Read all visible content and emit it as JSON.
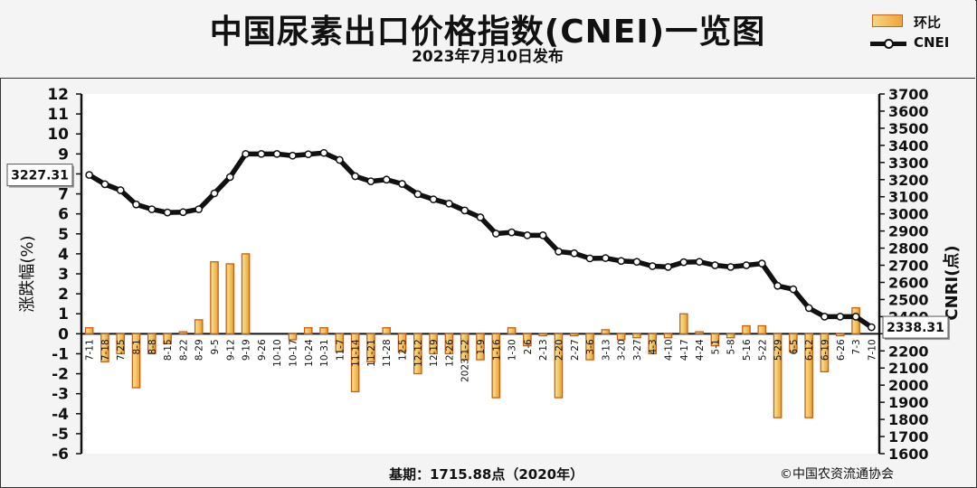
{
  "chart_data": {
    "type": "bar+line",
    "title": "中国尿素出口价格指数(CNEI)一览图",
    "subtitle": "2023年7月10日发布",
    "legend": [
      {
        "label": "环比",
        "type": "bar",
        "color": "#f0a23e"
      },
      {
        "label": "CNEI",
        "type": "line",
        "color": "#111111"
      }
    ],
    "legend_position": "top-right",
    "ylabel_left": "涨跌幅(%)",
    "ylabel_right": "CNRI(点)",
    "ylim_left": [
      -6,
      12
    ],
    "ylim_right": [
      1600,
      3700
    ],
    "yticks_left": [
      "12",
      "11",
      "10",
      "9",
      "8",
      "7",
      "6",
      "5",
      "4",
      "3",
      "2",
      "1",
      "0",
      "-1",
      "-2",
      "-3",
      "-4",
      "-5",
      "-6"
    ],
    "yticks_right": [
      "3700",
      "3600",
      "3500",
      "3400",
      "3300",
      "3200",
      "3100",
      "3000",
      "2900",
      "2800",
      "2700",
      "2600",
      "2500",
      "2400",
      "2300",
      "2200",
      "2100",
      "2000",
      "1900",
      "1800",
      "1700",
      "1600"
    ],
    "categories": [
      "7-11",
      "7-18",
      "7-25",
      "8-1",
      "8-8",
      "8-15",
      "8-22",
      "8-29",
      "9-5",
      "9-12",
      "9-19",
      "9-26",
      "10-10",
      "10-17",
      "10-24",
      "10-31",
      "11-7",
      "11-14",
      "11-21",
      "11-28",
      "12-5",
      "12-12",
      "12-19",
      "12-26",
      "2023-1-2",
      "1-9",
      "1-16",
      "1-30",
      "2-6",
      "2-13",
      "2-20",
      "2-27",
      "3-6",
      "3-13",
      "3-20",
      "3-27",
      "4-3",
      "4-10",
      "4-17",
      "4-24",
      "5-1",
      "5-8",
      "5-16",
      "5-22",
      "5-29",
      "6-5",
      "6-12",
      "6-19",
      "6-26",
      "7-3",
      "7-10"
    ],
    "series": [
      {
        "name": "环比",
        "axis": "left",
        "values": [
          0.3,
          -1.4,
          -1.0,
          -2.7,
          -1.0,
          -0.5,
          0.1,
          0.7,
          3.6,
          3.5,
          4.0,
          0.0,
          0.0,
          -0.3,
          0.3,
          0.3,
          -0.9,
          -2.9,
          -1.4,
          0.3,
          -0.9,
          -2.0,
          -1.0,
          -1.0,
          -1.3,
          -1.3,
          -3.2,
          0.3,
          -0.6,
          -0.1,
          -3.2,
          -0.1,
          -1.3,
          0.2,
          -0.3,
          -0.2,
          -1.0,
          -0.2,
          1.0,
          0.1,
          -0.6,
          -0.2,
          0.4,
          0.4,
          -4.2,
          -0.9,
          -4.2,
          -1.9,
          -0.1,
          1.3,
          0.0
        ]
      },
      {
        "name": "CNEI",
        "axis": "right",
        "values": [
          3227.31,
          3173,
          3138,
          3055,
          3027,
          3008,
          3010,
          3027,
          3120,
          3215,
          3350,
          3350,
          3350,
          3340,
          3348,
          3356,
          3315,
          3220,
          3190,
          3200,
          3175,
          3115,
          3085,
          3060,
          3020,
          2980,
          2885,
          2892,
          2875,
          2875,
          2780,
          2770,
          2740,
          2742,
          2725,
          2720,
          2695,
          2690,
          2718,
          2720,
          2700,
          2690,
          2700,
          2710,
          2580,
          2560,
          2450,
          2400,
          2400,
          2400,
          2338.31
        ]
      }
    ],
    "callouts": [
      {
        "label": "3227.31",
        "point": "first",
        "side": "left"
      },
      {
        "label": "2338.31",
        "point": "last",
        "side": "right"
      }
    ],
    "grid": false
  },
  "footer": {
    "base": "基期：1715.88点（2020年）",
    "source": "©中国农资流通协会"
  }
}
